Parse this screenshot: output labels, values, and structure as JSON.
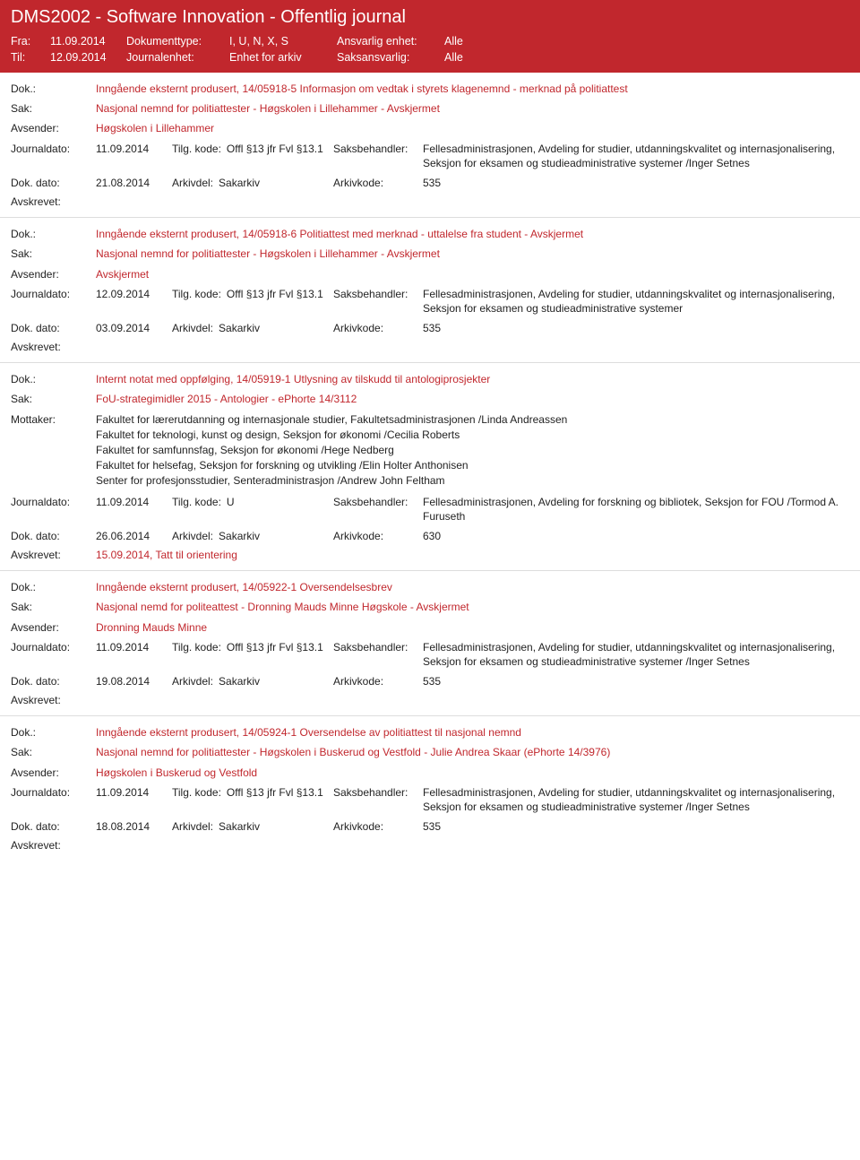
{
  "header": {
    "title": "DMS2002 - Software Innovation - Offentlig journal",
    "fra_label": "Fra:",
    "fra_value": "11.09.2014",
    "til_label": "Til:",
    "til_value": "12.09.2014",
    "doktype_label": "Dokumenttype:",
    "doktype_value": "I, U, N, X, S",
    "journalenhet_label": "Journalenhet:",
    "journalenhet_value": "Enhet for arkiv",
    "ansvarlig_label": "Ansvarlig enhet:",
    "ansvarlig_value": "Alle",
    "saksansvarlig_label": "Saksansvarlig:",
    "saksansvarlig_value": "Alle"
  },
  "labels": {
    "dok": "Dok.:",
    "sak": "Sak:",
    "avsender": "Avsender:",
    "mottaker": "Mottaker:",
    "journaldato": "Journaldato:",
    "tilgkode": "Tilg. kode:",
    "saksbehandler": "Saksbehandler:",
    "dokdato": "Dok. dato:",
    "arkivdel": "Arkivdel:",
    "arkivkode": "Arkivkode:",
    "avskrevet": "Avskrevet:"
  },
  "records": [
    {
      "dok": "Inngående eksternt produsert, 14/05918-5 Informasjon om vedtak i styrets klagenemnd - merknad på politiattest",
      "sak": "Nasjonal nemnd for politiattester - Høgskolen i Lillehammer - Avskjermet",
      "party_label": "Avsender:",
      "party": "Høgskolen i Lillehammer",
      "jd": "11.09.2014",
      "tk": "Offl §13 jfr Fvl §13.1",
      "sbh": "Fellesadministrasjonen, Avdeling for studier, utdanningskvalitet og internasjonalisering, Seksjon for eksamen og studieadministrative systemer /Inger Setnes",
      "dd": "21.08.2014",
      "ark": "Sakarkiv",
      "akode": "535",
      "avskrevet": ""
    },
    {
      "dok": "Inngående eksternt produsert, 14/05918-6 Politiattest med merknad - uttalelse fra student - Avskjermet",
      "sak": "Nasjonal nemnd for politiattester - Høgskolen i Lillehammer - Avskjermet",
      "party_label": "Avsender:",
      "party": "Avskjermet",
      "jd": "12.09.2014",
      "tk": "Offl §13 jfr Fvl §13.1",
      "sbh": "Fellesadministrasjonen, Avdeling for studier, utdanningskvalitet og internasjonalisering, Seksjon for eksamen og studieadministrative systemer",
      "dd": "03.09.2014",
      "ark": "Sakarkiv",
      "akode": "535",
      "avskrevet": ""
    },
    {
      "dok": "Internt notat med oppfølging, 14/05919-1 Utlysning av tilskudd til antologiprosjekter",
      "sak": "FoU-strategimidler 2015 -  Antologier - ePhorte 14/3112",
      "party_label": "Mottaker:",
      "mottaker": [
        "Fakultet for lærerutdanning og internasjonale studier, Fakultetsadministrasjonen /Linda Andreassen",
        "Fakultet for teknologi, kunst og design, Seksjon for økonomi /Cecilia Roberts",
        "Fakultet for samfunnsfag, Seksjon for økonomi /Hege Nedberg",
        "Fakultet for helsefag, Seksjon for forskning og utvikling /Elin Holter Anthonisen",
        "Senter for profesjonsstudier, Senteradministrasjon /Andrew John Feltham"
      ],
      "jd": "11.09.2014",
      "tk": "U",
      "sbh": "Fellesadministrasjonen, Avdeling for forskning og bibliotek, Seksjon for FOU /Tormod A. Furuseth",
      "dd": "26.06.2014",
      "ark": "Sakarkiv",
      "akode": "630",
      "avskrevet": "15.09.2014, Tatt til orientering"
    },
    {
      "dok": "Inngående eksternt produsert, 14/05922-1 Oversendelsesbrev",
      "sak": "Nasjonal nemd for politeattest - Dronning Mauds Minne Høgskole - Avskjermet",
      "party_label": "Avsender:",
      "party": "Dronning Mauds Minne",
      "jd": "11.09.2014",
      "tk": "Offl §13 jfr Fvl §13.1",
      "sbh": "Fellesadministrasjonen, Avdeling for studier, utdanningskvalitet og internasjonalisering, Seksjon for eksamen og studieadministrative systemer /Inger Setnes",
      "dd": "19.08.2014",
      "ark": "Sakarkiv",
      "akode": "535",
      "avskrevet": ""
    },
    {
      "dok": "Inngående eksternt produsert, 14/05924-1 Oversendelse av politiattest til nasjonal nemnd",
      "sak": "Nasjonal nemnd for politiattester - Høgskolen i Buskerud og Vestfold - Julie Andrea Skaar (ePhorte 14/3976)",
      "party_label": "Avsender:",
      "party": "Høgskolen i Buskerud og Vestfold",
      "jd": "11.09.2014",
      "tk": "Offl §13 jfr Fvl §13.1",
      "sbh": "Fellesadministrasjonen, Avdeling for studier, utdanningskvalitet og internasjonalisering, Seksjon for eksamen og studieadministrative systemer /Inger Setnes",
      "dd": "18.08.2014",
      "ark": "Sakarkiv",
      "akode": "535",
      "avskrevet": ""
    }
  ]
}
